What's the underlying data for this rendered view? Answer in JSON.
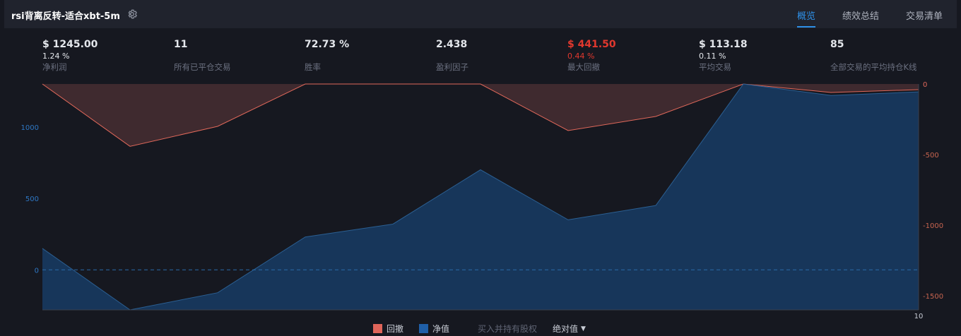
{
  "header": {
    "title": "rsi背离反转-适合xbt-5m",
    "settings_icon": "gear-icon",
    "tabs": [
      {
        "label": "概览",
        "active": true
      },
      {
        "label": "绩效总结",
        "active": false
      },
      {
        "label": "交易清单",
        "active": false
      }
    ]
  },
  "stats": [
    {
      "value": "$ 1245.00",
      "pct": "1.24 %",
      "label": "净利润"
    },
    {
      "value": "11",
      "pct": "",
      "label": "所有已平仓交易"
    },
    {
      "value": "72.73 %",
      "pct": "",
      "label": "胜率"
    },
    {
      "value": "2.438",
      "pct": "",
      "label": "盈利因子"
    },
    {
      "value": "$ 441.50",
      "pct": "0.44 %",
      "label": "最大回撤"
    },
    {
      "value": "$ 113.18",
      "pct": "0.11 %",
      "label": "平均交易"
    },
    {
      "value": "85",
      "pct": "",
      "label": "全部交易的平均持仓K线"
    }
  ],
  "colors": {
    "accent": "#2e8fe6",
    "equity_fill": "#17385e",
    "equity_line": "#2b5f92",
    "drawdown_fill": "#3f2a2f",
    "drawdown_line": "#e0685a",
    "negative": "#e2382e",
    "legend_drawdown": "#e0655a",
    "legend_equity": "#1f5fa8"
  },
  "legend": {
    "drawdown": "回撤",
    "equity": "净值",
    "buy_hold": "买入并持有股权",
    "mode": "绝对值"
  },
  "chart_data": {
    "type": "area",
    "x": [
      0,
      1,
      2,
      3,
      4,
      5,
      6,
      7,
      8,
      9,
      10
    ],
    "x_tick_labels": [
      {
        "x": 10,
        "label": "10"
      }
    ],
    "series": [
      {
        "name": "净值",
        "axis": "left",
        "values": [
          150,
          -280,
          -160,
          230,
          320,
          700,
          350,
          450,
          1300,
          1220,
          1245
        ]
      },
      {
        "name": "回撤",
        "axis": "right",
        "values": [
          0,
          -441.5,
          -300,
          0,
          0,
          0,
          -330,
          -230,
          0,
          -60,
          -40
        ]
      }
    ],
    "left_axis": {
      "ylim": [
        -280,
        1300
      ],
      "ticks": [
        0,
        500,
        1000
      ]
    },
    "right_axis": {
      "ylim": [
        -1600,
        0
      ],
      "ticks": [
        0,
        -500,
        -1000,
        -1500
      ]
    },
    "zero_line": "dashed",
    "grid": false
  }
}
